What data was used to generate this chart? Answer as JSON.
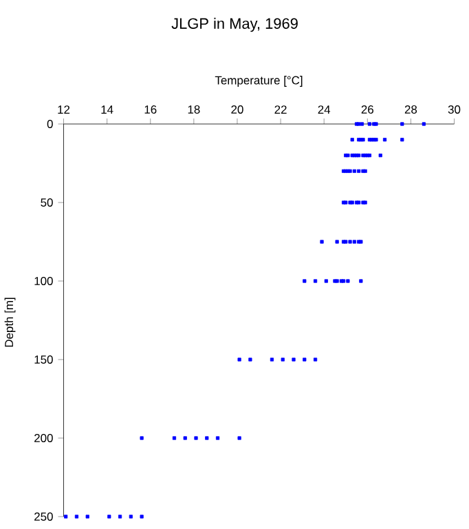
{
  "chart_data": {
    "type": "scatter",
    "title": "JLGP in May, 1969",
    "xlabel": "Temperature [°C]",
    "ylabel": "Depth [m]",
    "x": [
      25.5,
      25.6,
      25.75,
      26.1,
      26.3,
      26.4,
      27.6,
      28.6,
      25.3,
      25.6,
      25.7,
      25.8,
      26.1,
      26.2,
      26.3,
      26.4,
      26.8,
      27.6,
      25.0,
      25.1,
      25.3,
      25.4,
      25.5,
      25.6,
      25.8,
      25.9,
      26.0,
      26.1,
      26.6,
      24.9,
      25.0,
      25.1,
      25.2,
      25.4,
      25.6,
      25.8,
      25.9,
      24.9,
      25.0,
      25.2,
      25.3,
      25.5,
      25.6,
      25.8,
      25.9,
      23.9,
      24.6,
      24.9,
      25.0,
      25.2,
      25.4,
      25.6,
      25.7,
      23.1,
      23.6,
      24.1,
      24.5,
      24.6,
      24.8,
      24.9,
      25.1,
      25.7,
      20.1,
      20.6,
      21.6,
      22.1,
      22.6,
      23.1,
      23.6,
      15.6,
      17.1,
      17.6,
      18.1,
      18.6,
      19.1,
      20.1,
      12.1,
      12.6,
      13.1,
      14.1,
      14.6,
      15.1,
      15.6
    ],
    "values": [
      0,
      0,
      0,
      0,
      0,
      0,
      0,
      0,
      10,
      10,
      10,
      10,
      10,
      10,
      10,
      10,
      10,
      10,
      20,
      20,
      20,
      20,
      20,
      20,
      20,
      20,
      20,
      20,
      20,
      30,
      30,
      30,
      30,
      30,
      30,
      30,
      30,
      50,
      50,
      50,
      50,
      50,
      50,
      50,
      50,
      75,
      75,
      75,
      75,
      75,
      75,
      75,
      75,
      100,
      100,
      100,
      100,
      100,
      100,
      100,
      100,
      100,
      150,
      150,
      150,
      150,
      150,
      150,
      150,
      200,
      200,
      200,
      200,
      200,
      200,
      200,
      250,
      250,
      250,
      250,
      250,
      250,
      250
    ],
    "color": "#0000ff",
    "marker": "square",
    "xlim": [
      12,
      30
    ],
    "xticks": [
      12,
      14,
      16,
      18,
      20,
      22,
      24,
      26,
      28,
      30
    ],
    "ylim": [
      250,
      0
    ],
    "yticks": [
      0,
      50,
      100,
      150,
      200,
      250
    ]
  }
}
